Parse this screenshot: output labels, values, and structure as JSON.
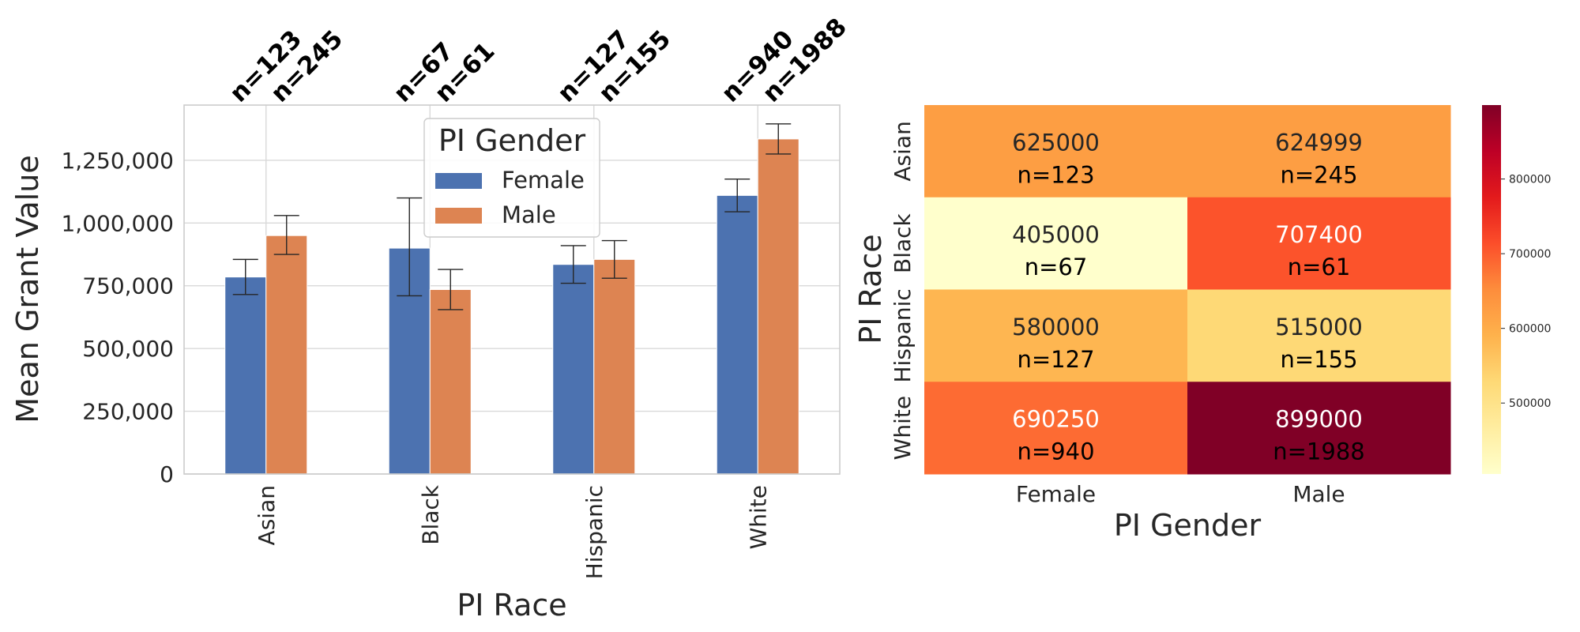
{
  "chart_data": [
    {
      "type": "bar",
      "title": "",
      "xlabel": "PI Race",
      "ylabel": "Mean Grant Value",
      "categories": [
        "Asian",
        "Black",
        "Hispanic",
        "White"
      ],
      "ylim": [
        0,
        1470000
      ],
      "yticks": [
        0,
        250000,
        500000,
        750000,
        1000000,
        1250000
      ],
      "ytick_labels": [
        "0",
        "250,000",
        "500,000",
        "750,000",
        "1,000,000",
        "1,250,000"
      ],
      "grid": true,
      "legend": {
        "title": "PI Gender",
        "placement": "top-center"
      },
      "series": [
        {
          "name": "Female",
          "color": "#4c72b0",
          "values": [
            785000,
            900000,
            835000,
            1110000
          ],
          "error_low": [
            715000,
            710000,
            760000,
            1045000
          ],
          "error_high": [
            855000,
            1100000,
            910000,
            1175000
          ],
          "n_labels": [
            "n=123",
            "n=67",
            "n=127",
            "n=940"
          ]
        },
        {
          "name": "Male",
          "color": "#dd8452",
          "values": [
            950000,
            735000,
            855000,
            1335000
          ],
          "error_low": [
            875000,
            655000,
            780000,
            1275000
          ],
          "error_high": [
            1030000,
            815000,
            930000,
            1395000
          ],
          "n_labels": [
            "n=245",
            "n=61",
            "n=155",
            "n=1988"
          ]
        }
      ]
    },
    {
      "type": "heatmap",
      "title": "",
      "xlabel": "PI Gender",
      "ylabel": "PI Race",
      "x_categories": [
        "Female",
        "Male"
      ],
      "y_categories": [
        "Asian",
        "Black",
        "Hispanic",
        "White"
      ],
      "colormap": "YlOrRd",
      "colorbar": {
        "min": 405000,
        "max": 899000,
        "ticks": [
          500000,
          600000,
          700000,
          800000
        ],
        "tick_labels": [
          "500000",
          "600000",
          "700000",
          "800000"
        ]
      },
      "cells": [
        [
          {
            "value": 625000,
            "label": "625000",
            "n": "n=123",
            "color": "#fd9e43",
            "text_color": "#262626"
          },
          {
            "value": 624999,
            "label": "624999",
            "n": "n=245",
            "color": "#fd9e43",
            "text_color": "#262626"
          }
        ],
        [
          {
            "value": 405000,
            "label": "405000",
            "n": "n=67",
            "color": "#ffffcc",
            "text_color": "#262626"
          },
          {
            "value": 707400,
            "label": "707400",
            "n": "n=61",
            "color": "#fc532b",
            "text_color": "#ffffff"
          }
        ],
        [
          {
            "value": 580000,
            "label": "580000",
            "n": "n=127",
            "color": "#feb651",
            "text_color": "#262626"
          },
          {
            "value": 515000,
            "label": "515000",
            "n": "n=155",
            "color": "#fed976",
            "text_color": "#262626"
          }
        ],
        [
          {
            "value": 690250,
            "label": "690250",
            "n": "n=940",
            "color": "#fd6b33",
            "text_color": "#ffffff"
          },
          {
            "value": 899000,
            "label": "899000",
            "n": "n=1988",
            "color": "#800026",
            "text_color": "#ffffff"
          }
        ]
      ]
    }
  ]
}
